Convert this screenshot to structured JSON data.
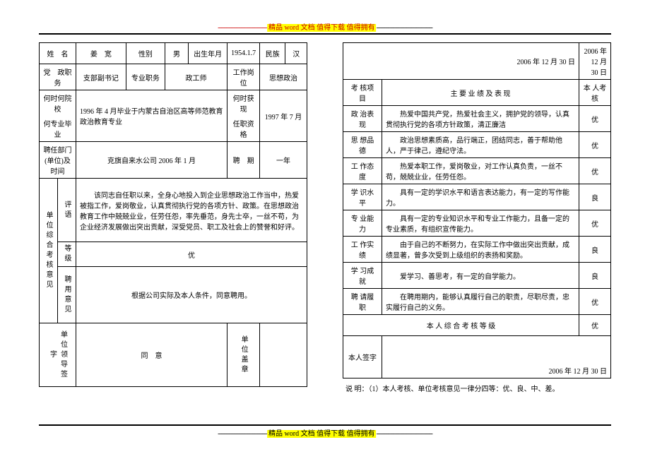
{
  "banner": {
    "top_dash": "------------------------------",
    "top_text": "精品 word 文档 值得下载 值得拥有",
    "top_trail": "----------------------------------",
    "bot_dash": "------------------------------",
    "bot_text": "精品 word 文档 值得下载 值得拥有",
    "bot_trail": "----------------------------------"
  },
  "left": {
    "row1": {
      "l1": "姓　名",
      "v1": "姜　宽",
      "l2": "性别",
      "v2": "男",
      "l3": "出生年月",
      "v3": "1954.1.7",
      "l4": "民族",
      "v4": "汉"
    },
    "row2": {
      "l1": "党　政职　务",
      "v1": "支部副书记",
      "l2": "专业职务",
      "v2": "政工师",
      "l3": "工作岗位",
      "v3": "思想政治"
    },
    "row3": {
      "l1": "何时何院校",
      "l1b": "何专业毕业",
      "v1": "1996 年 4 月毕业于内蒙古自治区高等师范教育 政治教育专业",
      "l2": "何时获现",
      "l2b": "任职资格",
      "v2": "1997 年 7 月"
    },
    "row4": {
      "l1": "聘任部门(单位)及时间",
      "v1": "克旗自来水公司 2006 年 1 月",
      "l2": "聘　期",
      "v2": "一年"
    },
    "eval": {
      "head": "单位综合考核意见",
      "r1l": "评语",
      "r1v": "　　该同志自任职以来，全身心地投入到企业思想政治工作当中，热爱被指工作，爱岗敬业，认真贯彻执行党的各项方针、政策。在思想政治教育工作中兢兢业业，任劳任怨，率先垂范，身先士卒，一丝不苟，为企业经济发展做出突出贡献，深受党员、职工及社会上的赞誉和好评。",
      "r2l": "等级",
      "r2v": "优",
      "r3l": "聘用意见",
      "r3v": "根据公司实际及本人条件，同意聘用。"
    },
    "sign": {
      "l": "单位领导签字",
      "v": "同　意",
      "r": "单位盖章"
    }
  },
  "right": {
    "date_l": "2006 年 12 月 30 日",
    "date_r": "2006 年 12 月 30 日",
    "head": {
      "c1": "考 核项 目",
      "c2": "主 要 业 绩 及 表 现",
      "c3": "本 人考 核"
    },
    "rows": [
      {
        "l": "政 治表 现",
        "v": "　　热爱中国共产党，热爱社会主义，拥护党的领导，认真贯彻执行党的各项方针政策，清正廉洁",
        "g": "优"
      },
      {
        "l": "思 想品 德",
        "v": "　　政治思想素质高，品行端正，团结同志，善于帮助他人，严于律己，遵纪守法。",
        "g": "优"
      },
      {
        "l": "工 作态 度",
        "v": "　　热爱本职工作，爱岗敬业，对工作认真负责，一丝不苟，兢兢业业，任劳任怨。",
        "g": "优"
      },
      {
        "l": "学 识水 平",
        "v": "　　具有一定的学识水平和语言表达能力，有一定的写作能力。",
        "g": "良"
      },
      {
        "l": "专 业能 力",
        "v": "　　具有一定的专业知识水平和专业工作能力，且备一定的专业素质，有组织宣传能力。",
        "g": "优"
      },
      {
        "l": "工 作实 绩",
        "v": "　　由于自己的不断努力，在实际工作中做出突出贡献，成绩显著，曾多次受到上级组织的表扬和奖励。",
        "g": "良"
      },
      {
        "l": "学 习成 就",
        "v": "　　爱学习、善思考，有一定的自学能力。",
        "g": "良"
      },
      {
        "l": "聘 请履 职",
        "v": "　　在聘用期内，能够认真履行自己的职责，尽职尽责，忠实履行自己的义务。",
        "g": "优"
      }
    ],
    "overall": {
      "l": "本 人 综 合 考 核 等 级",
      "v": "优"
    },
    "sign": {
      "l": "本人签字",
      "date": "2006 年 12 月 30 日"
    },
    "note": "说 明：（1）本人考核、单位考核意见一律分四等：优、良、中、差。"
  }
}
